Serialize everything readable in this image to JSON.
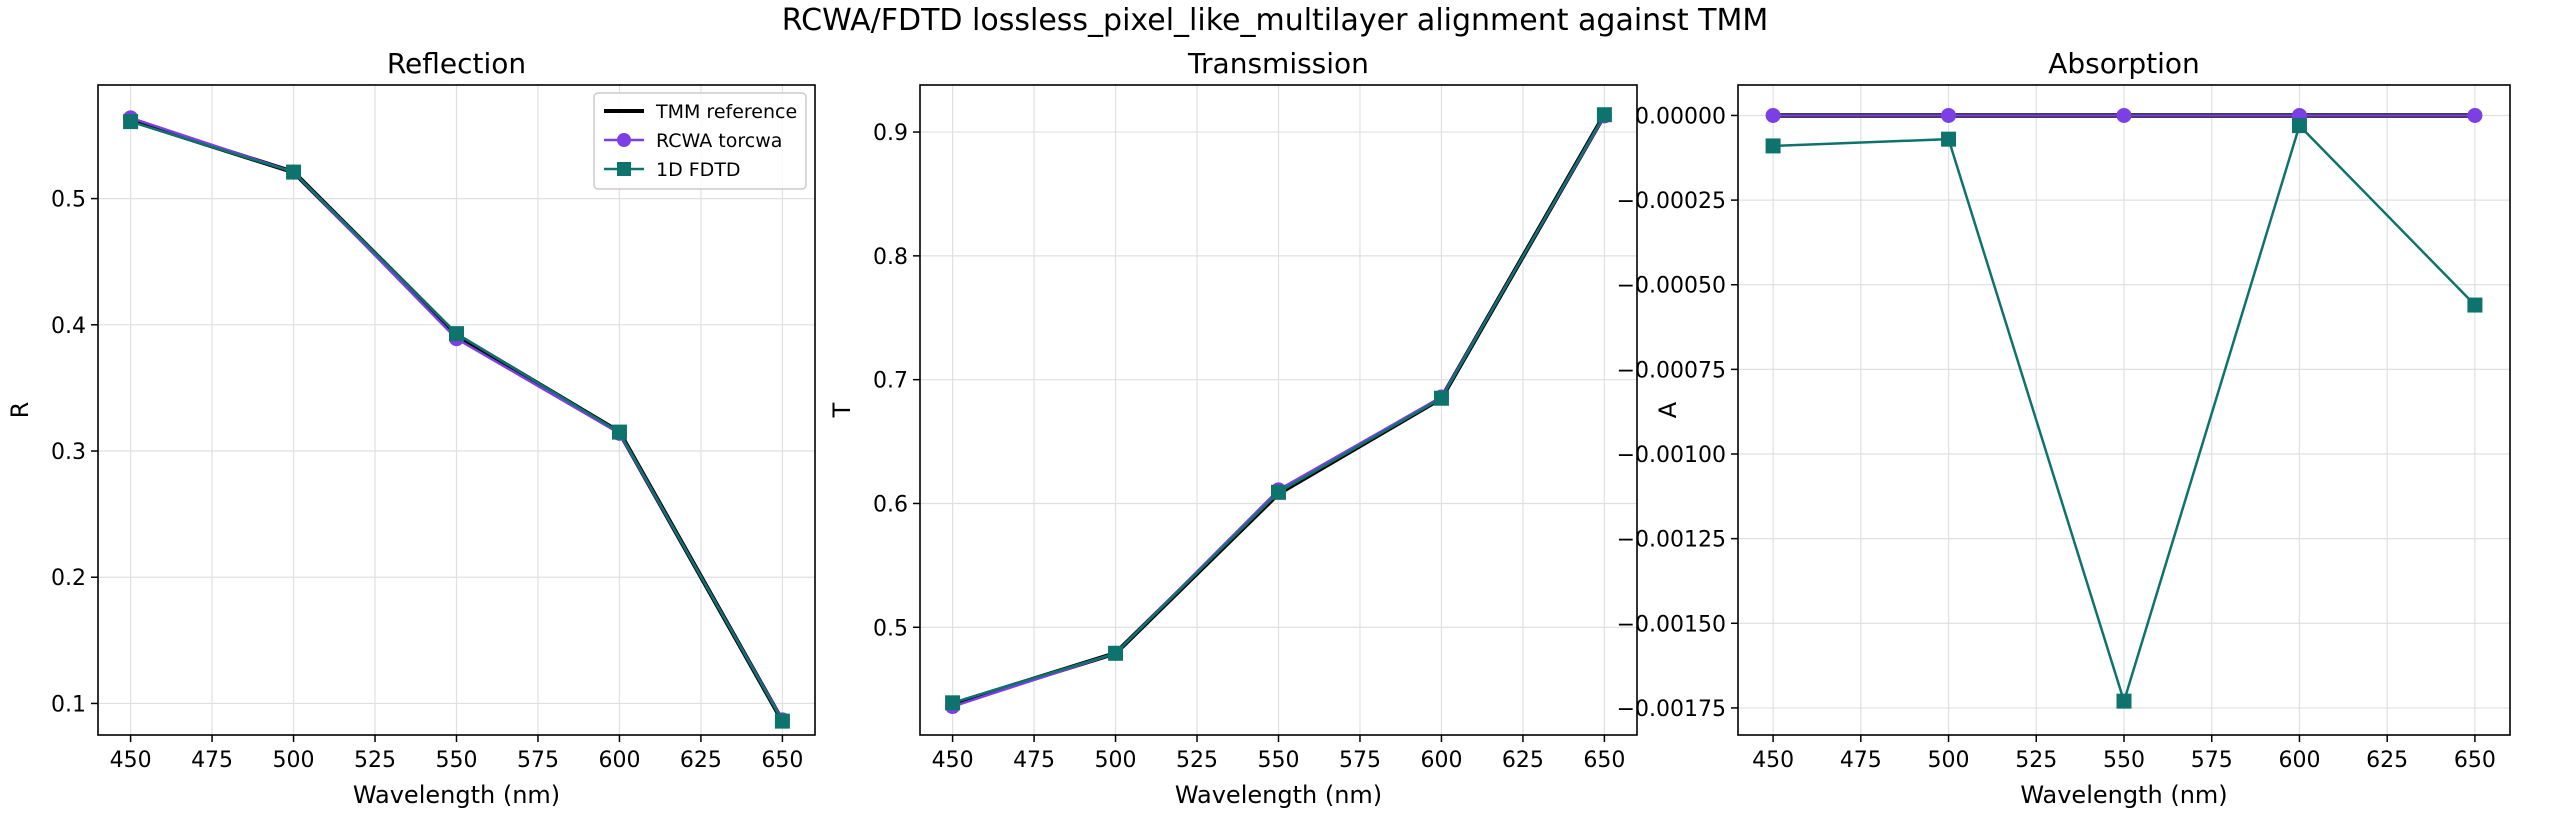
{
  "figure": {
    "title": "RCWA/FDTD lossless_pixel_like_multilayer alignment against TMM"
  },
  "legend": {
    "entries": [
      {
        "label": "TMM reference",
        "color": "#000000",
        "marker": "none"
      },
      {
        "label": "RCWA torcwa",
        "color": "#7b3fe4",
        "marker": "circle"
      },
      {
        "label": "1D FDTD",
        "color": "#0e736c",
        "marker": "square"
      }
    ],
    "location": "top-right of first panel"
  },
  "colors": {
    "tmm": "#000000",
    "rcwa": "#7b3fe4",
    "fdtd": "#0e736c",
    "grid": "#e0e0e0",
    "axis": "#000000"
  },
  "chart_data": [
    {
      "type": "line",
      "title": "Reflection",
      "xlabel": "Wavelength (nm)",
      "ylabel": "R",
      "x": [
        450,
        500,
        550,
        600,
        650
      ],
      "xlim": [
        440,
        660
      ],
      "ylim": [
        0.075,
        0.59
      ],
      "xticks": [
        450,
        475,
        500,
        525,
        550,
        575,
        600,
        625,
        650
      ],
      "yticks": [
        0.1,
        0.2,
        0.3,
        0.4,
        0.5
      ],
      "ytick_labels": [
        "0.1",
        "0.2",
        "0.3",
        "0.4",
        "0.5"
      ],
      "grid": true,
      "series": [
        {
          "name": "TMM reference",
          "values": [
            0.562,
            0.521,
            0.392,
            0.315,
            0.086
          ]
        },
        {
          "name": "RCWA torcwa",
          "values": [
            0.564,
            0.521,
            0.389,
            0.314,
            0.087
          ]
        },
        {
          "name": "1D FDTD",
          "values": [
            0.561,
            0.521,
            0.393,
            0.315,
            0.086
          ]
        }
      ]
    },
    {
      "type": "line",
      "title": "Transmission",
      "xlabel": "Wavelength (nm)",
      "ylabel": "T",
      "x": [
        450,
        500,
        550,
        600,
        650
      ],
      "xlim": [
        440,
        660
      ],
      "ylim": [
        0.413,
        0.938
      ],
      "xticks": [
        450,
        475,
        500,
        525,
        550,
        575,
        600,
        625,
        650
      ],
      "yticks": [
        0.5,
        0.6,
        0.7,
        0.8,
        0.9
      ],
      "ytick_labels": [
        "0.5",
        "0.6",
        "0.7",
        "0.8",
        "0.9"
      ],
      "grid": true,
      "series": [
        {
          "name": "TMM reference",
          "values": [
            0.438,
            0.479,
            0.608,
            0.685,
            0.914
          ]
        },
        {
          "name": "RCWA torcwa",
          "values": [
            0.436,
            0.479,
            0.611,
            0.686,
            0.913
          ]
        },
        {
          "name": "1D FDTD",
          "values": [
            0.439,
            0.479,
            0.609,
            0.685,
            0.914
          ]
        }
      ]
    },
    {
      "type": "line",
      "title": "Absorption",
      "xlabel": "Wavelength (nm)",
      "ylabel": "A",
      "x": [
        450,
        500,
        550,
        600,
        650
      ],
      "xlim": [
        440,
        660
      ],
      "ylim": [
        -0.00183,
        9e-05
      ],
      "xticks": [
        450,
        475,
        500,
        525,
        550,
        575,
        600,
        625,
        650
      ],
      "yticks": [
        0,
        -0.00025,
        -0.0005,
        -0.00075,
        -0.001,
        -0.00125,
        -0.0015,
        -0.00175
      ],
      "ytick_labels": [
        "0.00000",
        "−0.00025",
        "−0.00050",
        "−0.00075",
        "−0.00100",
        "−0.00125",
        "−0.00150",
        "−0.00175"
      ],
      "grid": true,
      "series": [
        {
          "name": "TMM reference",
          "values": [
            0,
            0,
            0,
            0,
            0
          ]
        },
        {
          "name": "RCWA torcwa",
          "values": [
            0,
            0,
            0,
            0,
            0
          ]
        },
        {
          "name": "1D FDTD",
          "values": [
            -9e-05,
            -7e-05,
            -0.00173,
            -3e-05,
            -0.00056
          ]
        }
      ]
    }
  ]
}
